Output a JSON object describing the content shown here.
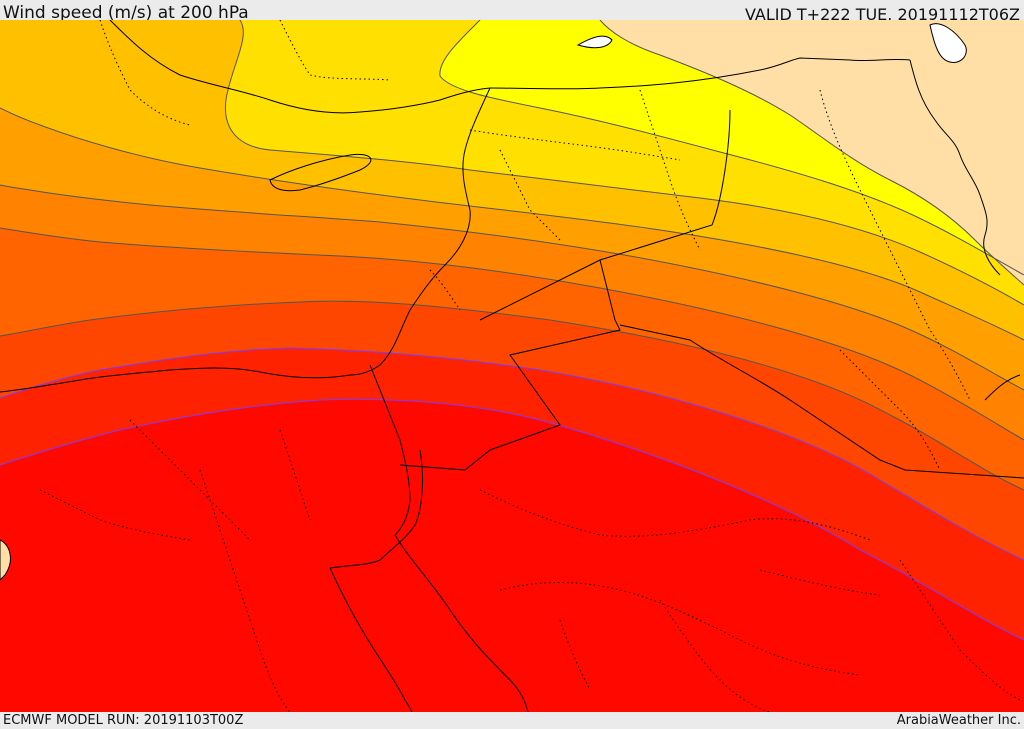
{
  "header": {
    "title": "Wind speed (m/s) at 200 hPa",
    "valid": "VALID T+222 TUE. 20191112T06Z"
  },
  "footer": {
    "model_run": "ECMWF MODEL RUN: 20191103T00Z",
    "credit": "ArabiaWeather Inc."
  },
  "map": {
    "variable": "wind speed at 200 hPa",
    "units": "m/s",
    "fill_colors": [
      "#ffdfa6",
      "#ffff00",
      "#ffe000",
      "#ffc000",
      "#ffa000",
      "#ff8200",
      "#ff6400",
      "#ff4600",
      "#ff2200",
      "#ff0800"
    ],
    "contour_color": "#555555",
    "border_color": "#000000"
  }
}
